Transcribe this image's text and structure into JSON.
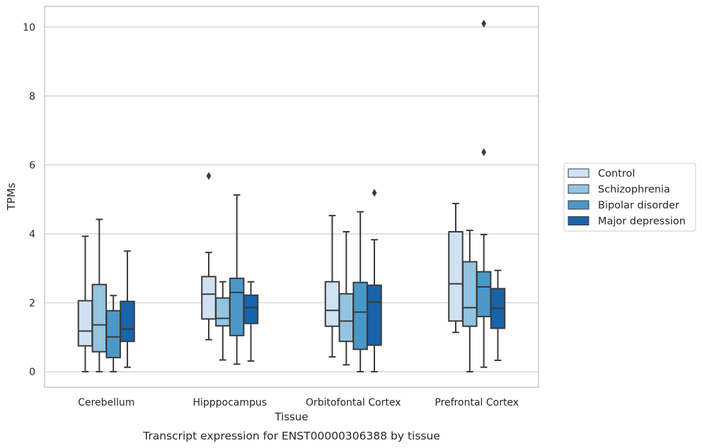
{
  "caption": "Transcript expression for ENST00000306388 by tissue",
  "chart_data": {
    "type": "box",
    "xlabel": "Tissue",
    "ylabel": "TPMs",
    "ylim": [
      -0.45,
      10.6
    ],
    "yticks": [
      0,
      2,
      4,
      6,
      8,
      10
    ],
    "grid": true,
    "legend_position": "right",
    "categories": [
      "Cerebellum",
      "Hipppocampus",
      "Orbitofontal Cortex",
      "Prefrontal Cortex"
    ],
    "series": [
      {
        "name": "Control",
        "color": "#d0e1f2",
        "boxes": [
          {
            "min": 0.0,
            "q1": 0.75,
            "median": 1.18,
            "q3": 2.06,
            "max": 3.93,
            "outliers": []
          },
          {
            "min": 0.93,
            "q1": 1.53,
            "median": 2.25,
            "q3": 2.76,
            "max": 3.46,
            "outliers": [
              5.68
            ]
          },
          {
            "min": 0.43,
            "q1": 1.32,
            "median": 1.78,
            "q3": 2.61,
            "max": 4.53,
            "outliers": []
          },
          {
            "min": 1.14,
            "q1": 1.47,
            "median": 2.55,
            "q3": 4.06,
            "max": 4.88,
            "outliers": []
          }
        ]
      },
      {
        "name": "Schizophrenia",
        "color": "#94c4df",
        "boxes": [
          {
            "min": 0.0,
            "q1": 0.58,
            "median": 1.36,
            "q3": 2.53,
            "max": 4.42,
            "outliers": []
          },
          {
            "min": 0.34,
            "q1": 1.33,
            "median": 1.55,
            "q3": 2.14,
            "max": 2.61,
            "outliers": []
          },
          {
            "min": 0.2,
            "q1": 0.88,
            "median": 1.47,
            "q3": 2.26,
            "max": 4.06,
            "outliers": []
          },
          {
            "min": 0.0,
            "q1": 1.32,
            "median": 1.86,
            "q3": 3.19,
            "max": 4.1,
            "outliers": []
          }
        ]
      },
      {
        "name": "Bipolar disorder",
        "color": "#4a98c9",
        "boxes": [
          {
            "min": 0.0,
            "q1": 0.41,
            "median": 1.01,
            "q3": 1.77,
            "max": 2.21,
            "outliers": []
          },
          {
            "min": 0.22,
            "q1": 1.05,
            "median": 2.3,
            "q3": 2.71,
            "max": 5.13,
            "outliers": []
          },
          {
            "min": 0.0,
            "q1": 0.65,
            "median": 1.73,
            "q3": 2.59,
            "max": 4.64,
            "outliers": []
          },
          {
            "min": 0.13,
            "q1": 1.6,
            "median": 2.46,
            "q3": 2.9,
            "max": 3.98,
            "outliers": [
              6.37,
              10.1
            ]
          }
        ]
      },
      {
        "name": "Major depression",
        "color": "#1764ab",
        "boxes": [
          {
            "min": 0.13,
            "q1": 0.88,
            "median": 1.24,
            "q3": 2.04,
            "max": 3.5,
            "outliers": []
          },
          {
            "min": 0.31,
            "q1": 1.4,
            "median": 1.86,
            "q3": 2.22,
            "max": 2.61,
            "outliers": []
          },
          {
            "min": 0.0,
            "q1": 0.77,
            "median": 2.02,
            "q3": 2.51,
            "max": 3.83,
            "outliers": [
              5.19
            ]
          },
          {
            "min": 0.33,
            "q1": 1.26,
            "median": 1.84,
            "q3": 2.41,
            "max": 2.94,
            "outliers": []
          }
        ]
      }
    ]
  }
}
